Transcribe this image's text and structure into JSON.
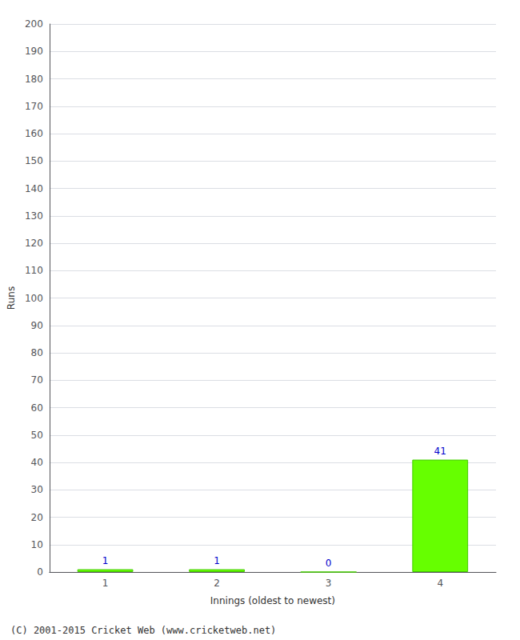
{
  "chart_data": {
    "type": "bar",
    "categories": [
      "1",
      "2",
      "3",
      "4"
    ],
    "values": [
      1,
      1,
      0,
      41
    ],
    "color": "#66ff00",
    "ylabel": "Runs",
    "xlabel": "Innings (oldest to newest)",
    "ylim": [
      0,
      200
    ],
    "yticks": [
      0,
      10,
      20,
      30,
      40,
      50,
      60,
      70,
      80,
      90,
      100,
      110,
      120,
      130,
      140,
      150,
      160,
      170,
      180,
      190,
      200
    ],
    "grid": true,
    "data_labels": true,
    "annotations": [
      "(C) 2001-2015 Cricket Web (www.cricketweb.net)"
    ]
  }
}
